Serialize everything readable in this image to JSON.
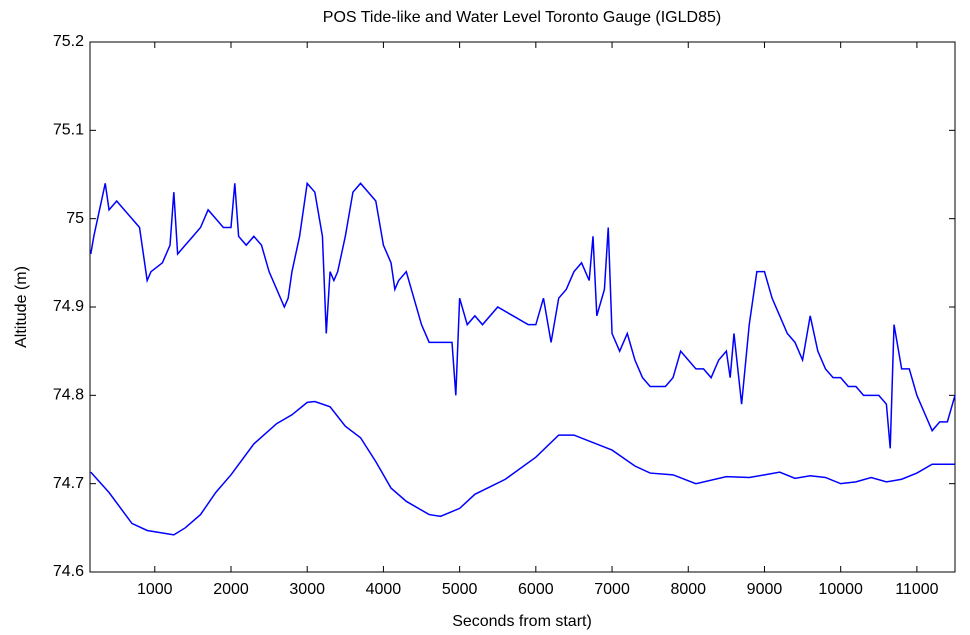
{
  "chart_data": {
    "type": "line",
    "title": "POS Tide-like and Water Level Toronto Gauge (IGLD85)",
    "x_label": "Seconds from start)",
    "y_label": "Altitude (m)",
    "xlim": [
      150,
      11500
    ],
    "ylim": [
      74.6,
      75.2
    ],
    "xticks": [
      1000,
      2000,
      3000,
      4000,
      5000,
      6000,
      7000,
      8000,
      9000,
      10000,
      11000
    ],
    "yticks": [
      74.6,
      74.7,
      74.8,
      74.9,
      75,
      75.1,
      75.2
    ],
    "grid": false,
    "series": [
      {
        "color": "#0000ff",
        "x": [
          160,
          200,
          300,
          350,
          400,
          500,
          600,
          700,
          800,
          850,
          900,
          950,
          1100,
          1200,
          1250,
          1300,
          1400,
          1500,
          1600,
          1700,
          1800,
          1900,
          2000,
          2050,
          2100,
          2200,
          2300,
          2400,
          2500,
          2600,
          2700,
          2750,
          2800,
          2900,
          3000,
          3100,
          3200,
          3250,
          3300,
          3350,
          3400,
          3500,
          3600,
          3700,
          3800,
          3900,
          4000,
          4100,
          4150,
          4200,
          4300,
          4400,
          4500,
          4600,
          4700,
          4900,
          4950,
          5000,
          5100,
          5200,
          5300,
          5500,
          5700,
          5900,
          6000,
          6100,
          6200,
          6300,
          6400,
          6500,
          6600,
          6700,
          6750,
          6800,
          6900,
          6950,
          7000,
          7100,
          7200,
          7300,
          7400,
          7500,
          7600,
          7700,
          7800,
          7900,
          8000,
          8100,
          8200,
          8300,
          8400,
          8500,
          8550,
          8600,
          8700,
          8800,
          8900,
          9000,
          9100,
          9200,
          9300,
          9400,
          9500,
          9600,
          9700,
          9800,
          9900,
          10000,
          10100,
          10200,
          10300,
          10400,
          10500,
          10600,
          10650,
          10700,
          10800,
          10900,
          11000,
          11100,
          11200,
          11300,
          11400,
          11500
        ],
        "values": [
          74.96,
          74.98,
          75.02,
          75.04,
          75.01,
          75.02,
          75.01,
          75.0,
          74.99,
          74.96,
          74.93,
          74.94,
          74.95,
          74.97,
          75.03,
          74.96,
          74.97,
          74.98,
          74.99,
          75.01,
          75.0,
          74.99,
          74.99,
          75.04,
          74.98,
          74.97,
          74.98,
          74.97,
          74.94,
          74.92,
          74.9,
          74.91,
          74.94,
          74.98,
          75.04,
          75.03,
          74.98,
          74.87,
          74.94,
          74.93,
          74.94,
          74.98,
          75.03,
          75.04,
          75.03,
          75.02,
          74.97,
          74.95,
          74.92,
          74.93,
          74.94,
          74.91,
          74.88,
          74.86,
          74.86,
          74.86,
          74.8,
          74.91,
          74.88,
          74.89,
          74.88,
          74.9,
          74.89,
          74.88,
          74.88,
          74.91,
          74.86,
          74.91,
          74.92,
          74.94,
          74.95,
          74.93,
          74.98,
          74.89,
          74.92,
          74.99,
          74.87,
          74.85,
          74.87,
          74.84,
          74.82,
          74.81,
          74.81,
          74.81,
          74.82,
          74.85,
          74.84,
          74.83,
          74.83,
          74.82,
          74.84,
          74.85,
          74.82,
          74.87,
          74.79,
          74.88,
          74.94,
          74.94,
          74.91,
          74.89,
          74.87,
          74.86,
          74.84,
          74.89,
          74.85,
          74.83,
          74.82,
          74.82,
          74.81,
          74.81,
          74.8,
          74.8,
          74.8,
          74.79,
          74.74,
          74.88,
          74.83,
          74.83,
          74.8,
          74.78,
          74.76,
          74.77,
          74.77,
          74.8
        ]
      },
      {
        "color": "#0000ff",
        "x": [
          160,
          400,
          700,
          900,
          1250,
          1400,
          1600,
          1800,
          2000,
          2300,
          2600,
          2800,
          3000,
          3100,
          3300,
          3500,
          3700,
          3900,
          4100,
          4300,
          4600,
          4750,
          5000,
          5200,
          5600,
          6000,
          6300,
          6500,
          7000,
          7300,
          7500,
          7800,
          8100,
          8500,
          8800,
          9000,
          9200,
          9400,
          9600,
          9800,
          10000,
          10200,
          10400,
          10600,
          10800,
          11000,
          11200,
          11500
        ],
        "values": [
          74.713,
          74.69,
          74.655,
          74.647,
          74.642,
          74.65,
          74.665,
          74.69,
          74.71,
          74.745,
          74.768,
          74.778,
          74.792,
          74.793,
          74.787,
          74.765,
          74.752,
          74.725,
          74.695,
          74.68,
          74.665,
          74.663,
          74.672,
          74.688,
          74.705,
          74.73,
          74.755,
          74.755,
          74.738,
          74.72,
          74.712,
          74.71,
          74.7,
          74.708,
          74.707,
          74.71,
          74.713,
          74.706,
          74.709,
          74.707,
          74.7,
          74.702,
          74.707,
          74.702,
          74.705,
          74.712,
          74.722,
          74.722
        ]
      }
    ]
  }
}
